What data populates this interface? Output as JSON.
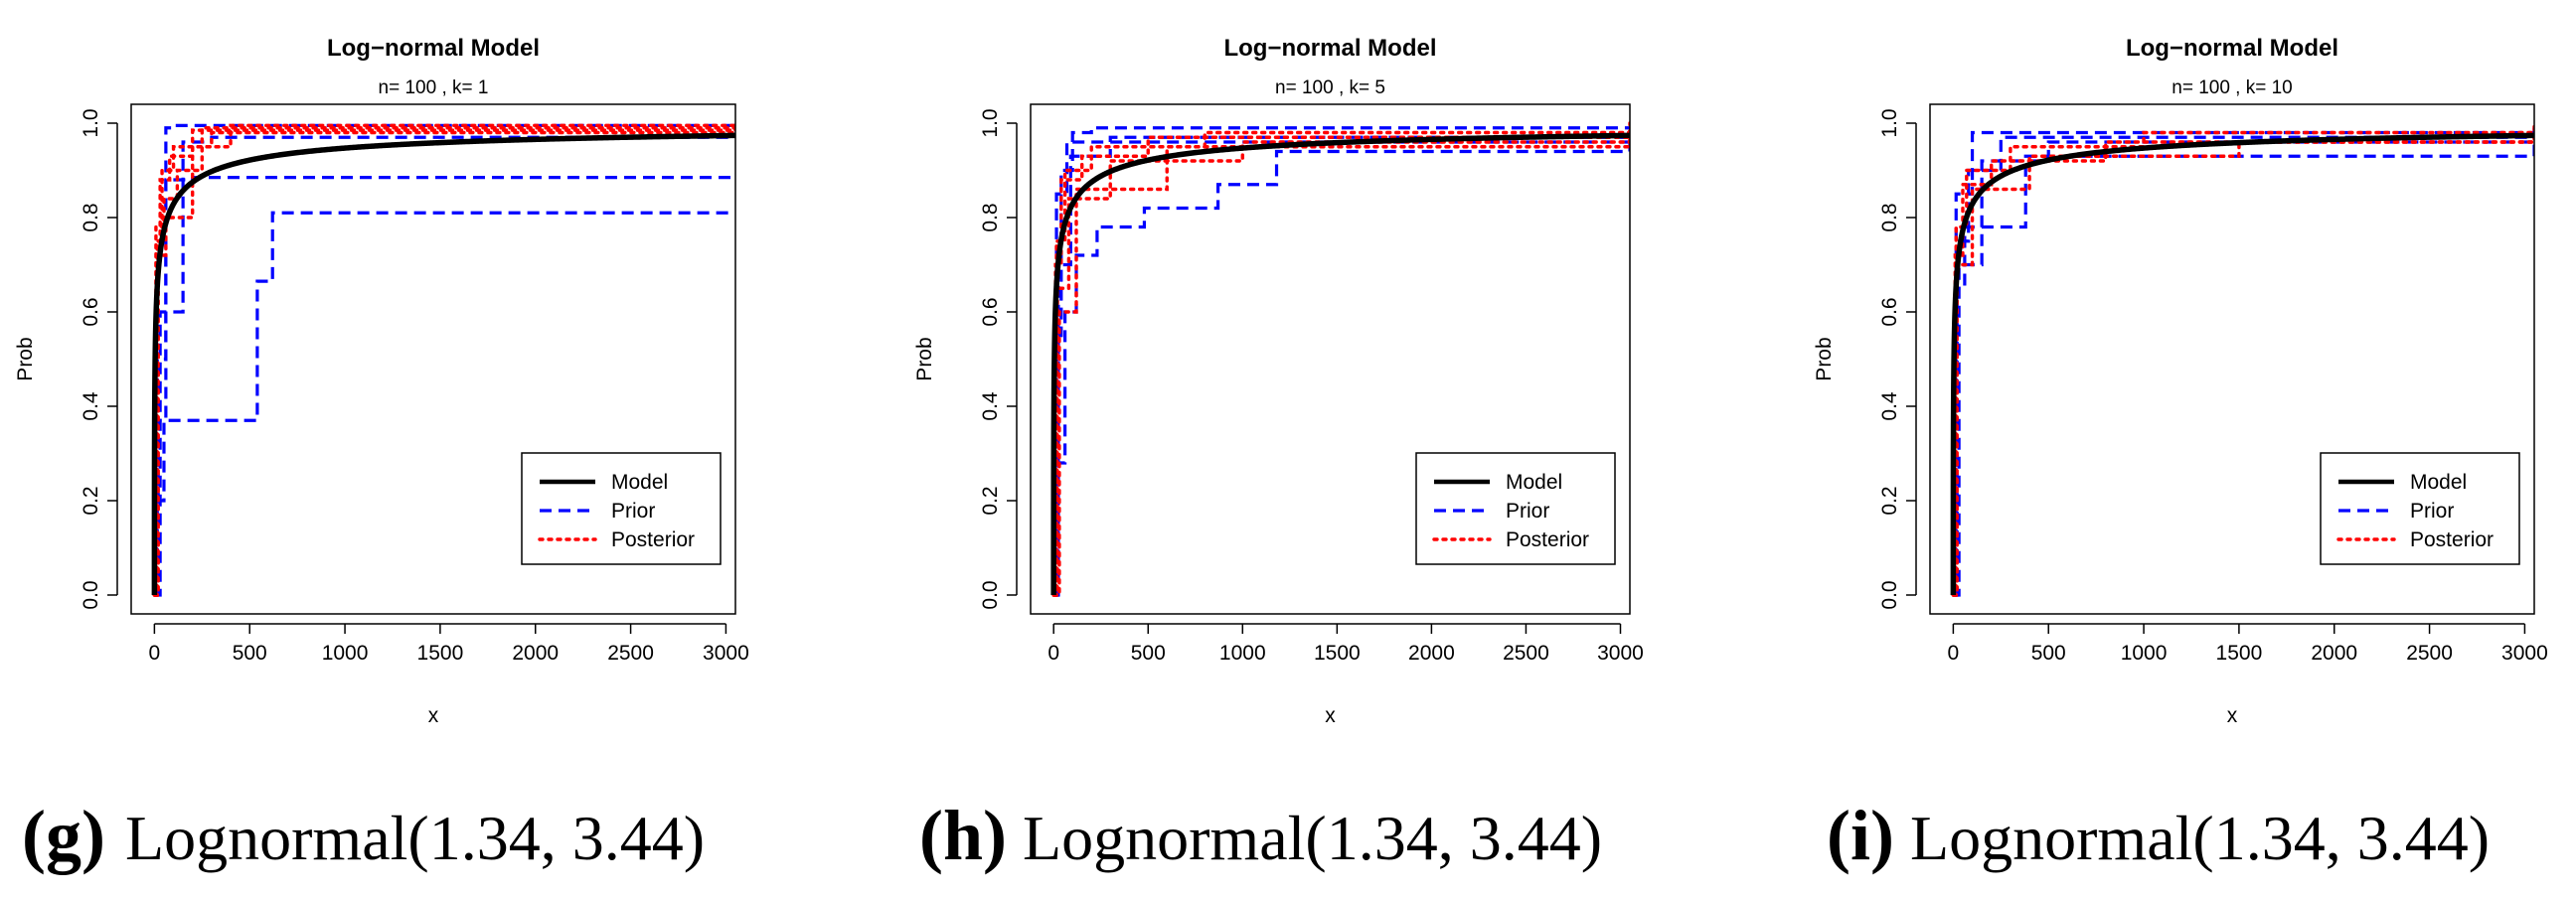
{
  "colors": {
    "model": "#000000",
    "prior": "#0000ff",
    "posterior": "#ff0000"
  },
  "chart_data": [
    {
      "type": "line",
      "title": "Log−normal Model",
      "subtitle": "n= 100 , k= 1",
      "xlabel": "x",
      "ylabel": "Prob",
      "xlim": [
        0,
        3050
      ],
      "ylim": [
        0,
        1
      ],
      "xticks": [
        0,
        500,
        1000,
        1500,
        2000,
        2500,
        3000
      ],
      "yticks": [
        0.0,
        0.2,
        0.4,
        0.6,
        0.8,
        1.0
      ],
      "legend": {
        "position": "bottom-right",
        "entries": [
          "Model",
          "Prior",
          "Posterior"
        ]
      },
      "caption": {
        "letter": "(g)",
        "text": "Lognormal(1.34, 3.44)"
      },
      "series": [
        {
          "name": "Model",
          "style": "solid",
          "model": {
            "mu": 1.34,
            "sigma": 3.44
          }
        },
        {
          "name": "Prior",
          "style": "dashed",
          "steps": [
            {
              "x": [
                0,
                5,
                20,
                60,
                200,
                3050
              ],
              "y": [
                0.0,
                0.21,
                0.37,
                0.88,
                0.885,
                0.885
              ]
            },
            {
              "x": [
                0,
                10,
                50,
                540,
                620,
                3050
              ],
              "y": [
                0.0,
                0.2,
                0.37,
                0.665,
                0.81,
                0.81
              ]
            },
            {
              "x": [
                0,
                15,
                60,
                120,
                3050
              ],
              "y": [
                0.0,
                0.5,
                0.99,
                0.995,
                0.995
              ]
            },
            {
              "x": [
                0,
                30,
                150,
                300,
                3050
              ],
              "y": [
                0.0,
                0.6,
                0.96,
                0.97,
                0.97
              ]
            }
          ]
        },
        {
          "name": "Posterior",
          "style": "dotted",
          "steps": [
            {
              "x": [
                0,
                10,
                30,
                80,
                200,
                3050
              ],
              "y": [
                0.0,
                0.7,
                0.88,
                0.93,
                0.985,
                0.99
              ]
            },
            {
              "x": [
                0,
                15,
                50,
                120,
                250,
                3050
              ],
              "y": [
                0.0,
                0.75,
                0.84,
                0.9,
                0.99,
                0.995
              ]
            },
            {
              "x": [
                0,
                20,
                60,
                200,
                400,
                3050
              ],
              "y": [
                0.0,
                0.72,
                0.8,
                0.95,
                0.995,
                1.0
              ]
            },
            {
              "x": [
                0,
                8,
                40,
                100,
                300,
                3050
              ],
              "y": [
                0.0,
                0.78,
                0.9,
                0.95,
                0.98,
                1.0
              ]
            }
          ]
        }
      ]
    },
    {
      "type": "line",
      "title": "Log−normal Model",
      "subtitle": "n= 100 , k= 5",
      "xlabel": "x",
      "ylabel": "Prob",
      "xlim": [
        0,
        3050
      ],
      "ylim": [
        0,
        1
      ],
      "xticks": [
        0,
        500,
        1000,
        1500,
        2000,
        2500,
        3000
      ],
      "yticks": [
        0.0,
        0.2,
        0.4,
        0.6,
        0.8,
        1.0
      ],
      "legend": {
        "position": "bottom-right",
        "entries": [
          "Model",
          "Prior",
          "Posterior"
        ]
      },
      "caption": {
        "letter": "(h)",
        "text": "Lognormal(1.34, 3.44)"
      },
      "series": [
        {
          "name": "Model",
          "style": "solid",
          "model": {
            "mu": 1.34,
            "sigma": 3.44
          }
        },
        {
          "name": "Prior",
          "style": "dashed",
          "steps": [
            {
              "x": [
                0,
                20,
                60,
                120,
                230,
                480,
                870,
                1180,
                3050
              ],
              "y": [
                0.0,
                0.28,
                0.6,
                0.72,
                0.78,
                0.82,
                0.87,
                0.94,
                0.98
              ]
            },
            {
              "x": [
                0,
                10,
                40,
                100,
                200,
                3050
              ],
              "y": [
                0.0,
                0.55,
                0.9,
                0.98,
                0.99,
                0.99
              ]
            },
            {
              "x": [
                0,
                15,
                70,
                3050
              ],
              "y": [
                0.0,
                0.85,
                0.96,
                0.985
              ]
            },
            {
              "x": [
                0,
                25,
                90,
                300,
                3050
              ],
              "y": [
                0.0,
                0.7,
                0.93,
                0.97,
                0.98
              ]
            }
          ]
        },
        {
          "name": "Posterior",
          "style": "dotted",
          "steps": [
            {
              "x": [
                0,
                10,
                40,
                150,
                500,
                3050
              ],
              "y": [
                0.0,
                0.7,
                0.88,
                0.93,
                0.97,
                0.99
              ]
            },
            {
              "x": [
                0,
                20,
                80,
                300,
                1000,
                3050
              ],
              "y": [
                0.0,
                0.65,
                0.84,
                0.92,
                0.96,
                0.985
              ]
            },
            {
              "x": [
                0,
                15,
                60,
                200,
                800,
                3050
              ],
              "y": [
                0.0,
                0.75,
                0.9,
                0.95,
                0.98,
                1.0
              ]
            },
            {
              "x": [
                0,
                30,
                120,
                600,
                3050
              ],
              "y": [
                0.0,
                0.6,
                0.86,
                0.95,
                0.995
              ]
            }
          ]
        }
      ]
    },
    {
      "type": "line",
      "title": "Log−normal Model",
      "subtitle": "n= 100 , k= 10",
      "xlabel": "x",
      "ylabel": "Prob",
      "xlim": [
        0,
        3050
      ],
      "ylim": [
        0,
        1
      ],
      "xticks": [
        0,
        500,
        1000,
        1500,
        2000,
        2500,
        3000
      ],
      "yticks": [
        0.0,
        0.2,
        0.4,
        0.6,
        0.8,
        1.0
      ],
      "legend": {
        "position": "bottom-right",
        "entries": [
          "Model",
          "Prior",
          "Posterior"
        ]
      },
      "caption": {
        "letter": "(i)",
        "text": "Lognormal(1.34, 3.44)"
      },
      "series": [
        {
          "name": "Model",
          "style": "solid",
          "model": {
            "mu": 1.34,
            "sigma": 3.44
          }
        },
        {
          "name": "Prior",
          "style": "dashed",
          "steps": [
            {
              "x": [
                0,
                10,
                60,
                200,
                380,
                3050
              ],
              "y": [
                0.0,
                0.65,
                0.78,
                0.78,
                0.93,
                0.97
              ]
            },
            {
              "x": [
                0,
                20,
                80,
                250,
                3050
              ],
              "y": [
                0.0,
                0.75,
                0.9,
                0.97,
                0.99
              ]
            },
            {
              "x": [
                0,
                15,
                100,
                3050
              ],
              "y": [
                0.0,
                0.85,
                0.98,
                0.99
              ]
            },
            {
              "x": [
                0,
                30,
                150,
                500,
                3050
              ],
              "y": [
                0.0,
                0.7,
                0.92,
                0.96,
                0.98
              ]
            }
          ]
        },
        {
          "name": "Posterior",
          "style": "dotted",
          "steps": [
            {
              "x": [
                0,
                10,
                50,
                200,
                800,
                3050
              ],
              "y": [
                0.0,
                0.72,
                0.87,
                0.92,
                0.96,
                0.98
              ]
            },
            {
              "x": [
                0,
                20,
                100,
                400,
                1500,
                3050
              ],
              "y": [
                0.0,
                0.7,
                0.86,
                0.93,
                0.96,
                0.975
              ]
            },
            {
              "x": [
                0,
                15,
                70,
                300,
                1000,
                3050
              ],
              "y": [
                0.0,
                0.78,
                0.9,
                0.95,
                0.98,
                0.995
              ]
            }
          ]
        }
      ]
    }
  ]
}
